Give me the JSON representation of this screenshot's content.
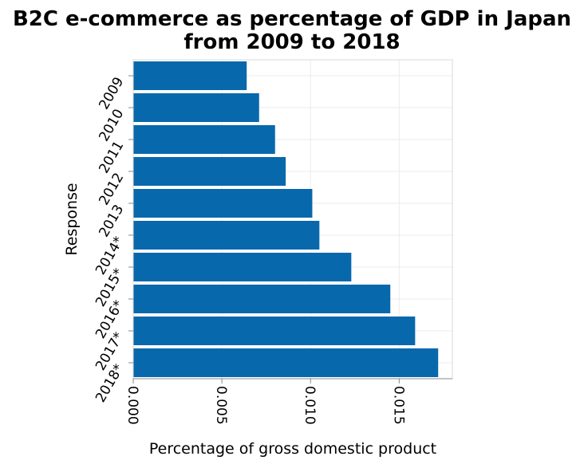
{
  "chart_data": {
    "type": "bar",
    "orientation": "horizontal",
    "title_lines": [
      "B2C e-commerce as percentage of GDP in Japan",
      "from 2009 to 2018"
    ],
    "xlabel": "Percentage of gross domestic product",
    "ylabel": "Response",
    "categories": [
      "2009",
      "2010",
      "2011",
      "2012",
      "2013",
      "2014*",
      "2015*",
      "2016*",
      "2017*",
      "2018*"
    ],
    "values": [
      0.0064,
      0.0071,
      0.008,
      0.0086,
      0.0101,
      0.0105,
      0.0123,
      0.0145,
      0.0159,
      0.0172
    ],
    "xlim": [
      0,
      0.018
    ],
    "xticks": [
      0.0,
      0.005,
      0.01,
      0.015
    ],
    "xtick_labels": [
      "0.000",
      "0.005",
      "0.010",
      "0.015"
    ],
    "grid": true,
    "bar_color": "#0868ac"
  }
}
